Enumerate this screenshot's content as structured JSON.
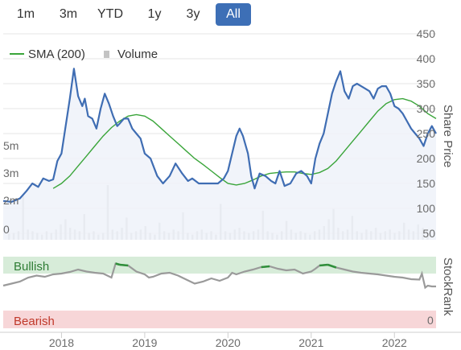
{
  "range_selector": {
    "buttons": [
      {
        "label": "1m",
        "active": false
      },
      {
        "label": "3m",
        "active": false
      },
      {
        "label": "YTD",
        "active": false
      },
      {
        "label": "1y",
        "active": false
      },
      {
        "label": "3y",
        "active": false
      },
      {
        "label": "All",
        "active": true
      }
    ]
  },
  "legend": {
    "sma_label": "SMA (200)",
    "volume_label": "Volume"
  },
  "right_axis_title": "Share Price",
  "rank_axis_title": "StockRank",
  "zones": {
    "bullish": "Bullish",
    "bearish": "Bearish",
    "rank_zero": "0"
  },
  "colors": {
    "price": "#3f6db3",
    "sma": "#3aa53a",
    "volume": "#c3c3c3",
    "bullish_bg": "#d7ecd9",
    "bearish_bg": "#f7d6d8",
    "rank_line": "#9a9a9a",
    "rank_bull": "#2f8f3a",
    "active_button": "#3d6fb6"
  },
  "chart_data": {
    "type": "line",
    "x_ticks": [
      "2018",
      "2019",
      "2020",
      "2021",
      "2022"
    ],
    "x_range": [
      2017.3,
      2022.5
    ],
    "price_axis": {
      "ticks": [
        50,
        100,
        150,
        200,
        250,
        300,
        350,
        400,
        450
      ],
      "ylim": [
        50,
        450
      ]
    },
    "volume_axis": {
      "ticks": [
        {
          "v": 0,
          "label": "0"
        },
        {
          "v": 2,
          "label": "2m"
        },
        {
          "v": 3,
          "label": "3m"
        },
        {
          "v": 5,
          "label": "5m"
        }
      ]
    },
    "series": [
      {
        "name": "Price",
        "x": [
          2017.3,
          2017.4,
          2017.5,
          2017.58,
          2017.65,
          2017.72,
          2017.78,
          2017.85,
          2017.9,
          2017.95,
          2018.0,
          2018.05,
          2018.1,
          2018.15,
          2018.2,
          2018.25,
          2018.28,
          2018.32,
          2018.37,
          2018.42,
          2018.47,
          2018.52,
          2018.57,
          2018.62,
          2018.67,
          2018.7,
          2018.75,
          2018.8,
          2018.85,
          2018.9,
          2018.95,
          2019.0,
          2019.07,
          2019.15,
          2019.22,
          2019.3,
          2019.37,
          2019.45,
          2019.52,
          2019.57,
          2019.65,
          2019.72,
          2019.8,
          2019.88,
          2019.95,
          2020.0,
          2020.05,
          2020.1,
          2020.14,
          2020.18,
          2020.24,
          2020.28,
          2020.32,
          2020.38,
          2020.45,
          2020.52,
          2020.57,
          2020.62,
          2020.68,
          2020.75,
          2020.82,
          2020.88,
          2020.95,
          2021.0,
          2021.05,
          2021.1,
          2021.15,
          2021.2,
          2021.25,
          2021.3,
          2021.35,
          2021.4,
          2021.45,
          2021.5,
          2021.55,
          2021.6,
          2021.65,
          2021.7,
          2021.75,
          2021.8,
          2021.85,
          2021.9,
          2021.95,
          2022.0,
          2022.05,
          2022.1,
          2022.15,
          2022.2,
          2022.25,
          2022.3,
          2022.35,
          2022.4,
          2022.45,
          2022.5
        ],
        "values": [
          115,
          113,
          120,
          135,
          150,
          143,
          160,
          155,
          158,
          195,
          210,
          265,
          320,
          380,
          325,
          305,
          320,
          285,
          280,
          260,
          300,
          330,
          310,
          285,
          265,
          270,
          280,
          280,
          260,
          250,
          240,
          210,
          200,
          165,
          150,
          165,
          190,
          170,
          155,
          160,
          150,
          150,
          150,
          150,
          160,
          175,
          210,
          245,
          260,
          245,
          210,
          165,
          140,
          170,
          165,
          155,
          150,
          175,
          145,
          150,
          170,
          175,
          165,
          150,
          200,
          230,
          250,
          290,
          330,
          355,
          375,
          335,
          320,
          345,
          350,
          345,
          340,
          335,
          320,
          340,
          345,
          345,
          330,
          305,
          300,
          290,
          275,
          260,
          250,
          240,
          225,
          250,
          265,
          250
        ]
      },
      {
        "name": "SMA (200)",
        "x": [
          2017.9,
          2018.0,
          2018.1,
          2018.2,
          2018.3,
          2018.4,
          2018.5,
          2018.6,
          2018.7,
          2018.8,
          2018.9,
          2019.0,
          2019.1,
          2019.2,
          2019.3,
          2019.4,
          2019.5,
          2019.6,
          2019.7,
          2019.8,
          2019.9,
          2020.0,
          2020.1,
          2020.2,
          2020.3,
          2020.4,
          2020.5,
          2020.6,
          2020.7,
          2020.8,
          2020.9,
          2021.0,
          2021.1,
          2021.2,
          2021.3,
          2021.4,
          2021.5,
          2021.6,
          2021.7,
          2021.8,
          2021.9,
          2022.0,
          2022.1,
          2022.2,
          2022.3,
          2022.4,
          2022.5
        ],
        "values": [
          140,
          150,
          165,
          185,
          205,
          225,
          245,
          262,
          275,
          285,
          288,
          285,
          275,
          260,
          245,
          230,
          215,
          200,
          188,
          175,
          162,
          150,
          147,
          150,
          157,
          165,
          170,
          172,
          173,
          173,
          170,
          168,
          172,
          180,
          195,
          215,
          235,
          255,
          275,
          295,
          310,
          318,
          320,
          315,
          305,
          290,
          280
        ]
      },
      {
        "name": "Volume",
        "values": [
          0.35,
          0.4,
          0.5,
          2.6,
          0.6,
          0.5,
          0.4,
          0.3,
          0.5,
          0.4,
          0.6,
          0.9,
          1.2,
          0.7,
          0.6,
          0.5,
          1.5,
          0.4,
          0.5,
          0.3,
          0.4,
          3.2,
          0.6,
          0.5,
          0.7,
          1.3,
          0.4,
          0.5,
          0.6,
          0.8,
          0.4,
          0.3,
          1.0,
          0.5,
          0.4,
          0.6,
          0.5,
          1.6,
          0.4,
          0.3,
          0.5,
          0.6,
          0.4,
          0.5,
          0.3,
          2.1,
          0.5,
          0.4,
          0.6,
          0.7,
          0.5,
          0.4,
          0.5,
          0.6,
          1.7,
          0.5,
          0.4,
          0.3,
          0.5,
          1.1,
          0.6,
          0.4,
          0.5,
          0.4,
          0.3,
          0.5,
          0.6,
          0.8,
          1.2,
          1.8,
          0.7,
          0.5,
          0.6,
          1.4,
          0.5,
          0.4,
          0.6,
          0.5,
          0.7,
          0.4,
          0.5,
          0.6,
          0.4,
          0.5,
          1.0,
          0.6,
          0.5,
          0.9,
          0.7,
          0.6
        ]
      },
      {
        "name": "StockRank",
        "x": [
          2017.3,
          2017.4,
          2017.5,
          2017.6,
          2017.7,
          2017.8,
          2017.9,
          2018.0,
          2018.1,
          2018.2,
          2018.3,
          2018.4,
          2018.5,
          2018.6,
          2018.65,
          2018.7,
          2018.8,
          2018.9,
          2019.0,
          2019.05,
          2019.1,
          2019.2,
          2019.3,
          2019.4,
          2019.5,
          2019.6,
          2019.7,
          2019.8,
          2019.9,
          2020.0,
          2020.05,
          2020.1,
          2020.2,
          2020.3,
          2020.4,
          2020.5,
          2020.6,
          2020.7,
          2020.8,
          2020.9,
          2021.0,
          2021.05,
          2021.1,
          2021.2,
          2021.3,
          2021.4,
          2021.5,
          2021.6,
          2021.7,
          2021.8,
          2021.9,
          2022.0,
          2022.1,
          2022.2,
          2022.3,
          2022.33,
          2022.37,
          2022.4,
          2022.45,
          2022.5
        ],
        "values": [
          40,
          45,
          50,
          60,
          65,
          62,
          68,
          70,
          74,
          80,
          75,
          72,
          70,
          60,
          95,
          92,
          90,
          75,
          68,
          60,
          62,
          70,
          72,
          65,
          55,
          45,
          50,
          58,
          52,
          60,
          72,
          68,
          75,
          80,
          86,
          88,
          82,
          78,
          80,
          70,
          75,
          82,
          90,
          92,
          85,
          80,
          75,
          72,
          70,
          68,
          65,
          62,
          60,
          56,
          55,
          70,
          35,
          40,
          38,
          38
        ]
      }
    ],
    "rank_axis": {
      "ylim": [
        0,
        100
      ]
    },
    "zones": [
      {
        "label": "Bullish"
      },
      {
        "label": "Bearish",
        "value_label": "0"
      }
    ],
    "grid": true,
    "legend_position": "top-left"
  }
}
